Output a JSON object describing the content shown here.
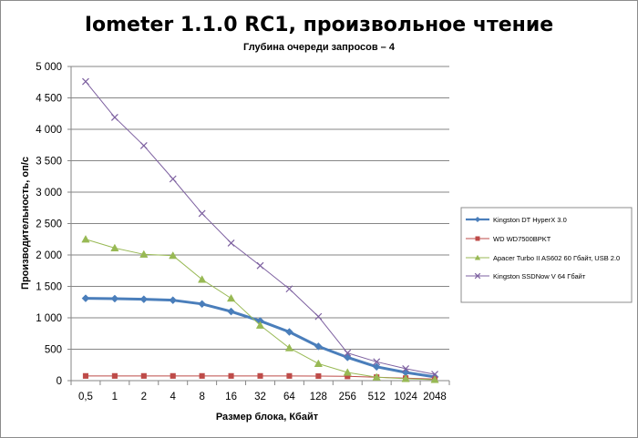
{
  "chart_data": {
    "type": "line",
    "title": "Iometer 1.1.0 RC1, произвольное чтение",
    "subtitle": "Глубина очереди запросов – 4",
    "xlabel": "Размер блока, Кбайт",
    "ylabel": "Производительность, оп/с",
    "categories": [
      "0,5",
      "1",
      "2",
      "4",
      "8",
      "16",
      "32",
      "64",
      "128",
      "256",
      "512",
      "1024",
      "2048"
    ],
    "ylim": [
      0,
      5000
    ],
    "yticks": [
      0,
      500,
      1000,
      1500,
      2000,
      2500,
      3000,
      3500,
      4000,
      4500,
      5000
    ],
    "ytick_labels": [
      "0",
      "500",
      "1 000",
      "1 500",
      "2 000",
      "2 500",
      "3 000",
      "3 500",
      "4 000",
      "4 500",
      "5 000"
    ],
    "grid": "horizontal",
    "legend_position": "right",
    "series": [
      {
        "name": "Kingston DT HyperX 3.0",
        "color": "#4a7ebb",
        "marker": "diamond",
        "values": [
          1310,
          1305,
          1295,
          1280,
          1220,
          1100,
          950,
          775,
          545,
          370,
          220,
          130,
          60
        ]
      },
      {
        "name": "WD WD7500BPKT",
        "color": "#be4b48",
        "marker": "square",
        "values": [
          75,
          75,
          75,
          75,
          75,
          75,
          75,
          75,
          72,
          68,
          55,
          40,
          25
        ]
      },
      {
        "name": "Apacer Turbo II AS602 60 Гбайт, USB 2.0",
        "color": "#98b954",
        "marker": "triangle",
        "values": [
          2250,
          2110,
          2010,
          1990,
          1610,
          1310,
          880,
          520,
          270,
          130,
          55,
          30,
          15
        ]
      },
      {
        "name": "Kingston SSDNow V 64 Гбайт",
        "color": "#7d60a0",
        "marker": "x",
        "values": [
          4760,
          4190,
          3740,
          3210,
          2660,
          2190,
          1830,
          1460,
          1020,
          440,
          300,
          190,
          100
        ]
      }
    ]
  }
}
